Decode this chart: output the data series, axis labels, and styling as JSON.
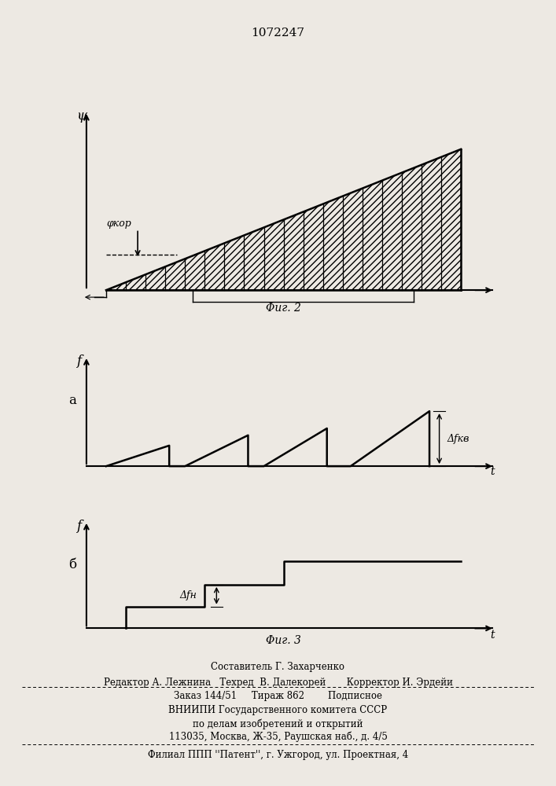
{
  "title": "1072247",
  "bg_color": "#ede9e3",
  "fig_a_label": "а",
  "fig_b_label": "б",
  "fig2_caption": "Φиг. 2",
  "fig3_caption": "Φиг. 3",
  "psi_label": "ψ",
  "phi_kor_label": "φкор",
  "f_label": "f",
  "t_label": "t",
  "delta_fkb_label": "Δfкв",
  "delta_fn_label": "Δfн",
  "footer_line1": "Составитель Г. Захарченко",
  "footer_line2": "Редактор А. Лежнина   Техред  В. Далекорей       Корректор И. Эрдейи",
  "footer_line3": "Заказ 144/51     Тираж 862        Подписное",
  "footer_line4": "ВНИИПИ Государственного комитета СССР",
  "footer_line5": "по делам изобретений и открытий",
  "footer_line6": "113035, Москва, Ж-35, Раушская наб., д. 4/5",
  "footer_line7": "Филиал ППП ''Патент'', г. Ужгород, ул. Проектная, 4"
}
